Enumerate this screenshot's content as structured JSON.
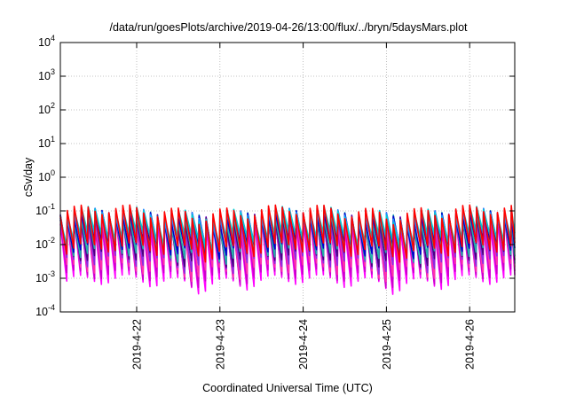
{
  "chart_data": {
    "type": "line",
    "title": "/data/run/goesPlots/archive/2019-04-26/13:00/flux/../bryn/5daysMars.plot",
    "xlabel": "Coordinated Universal Time (UTC)",
    "ylabel": "cSv/day",
    "xlim": [
      "2019-04-21T02:00",
      "2019-04-26T13:00"
    ],
    "ylim": [
      0.0001,
      10000
    ],
    "yscale": "log",
    "grid": true,
    "x_ticks": [
      "2019-4-22",
      "2019-4-23",
      "2019-4-24",
      "2019-4-25",
      "2019-4-26"
    ],
    "x_tick_dates": [
      "2019-04-22T00:00",
      "2019-04-23T00:00",
      "2019-04-24T00:00",
      "2019-04-25T00:00",
      "2019-04-26T00:00"
    ],
    "y_ticks": [
      {
        "value": 0.0001,
        "base": "10",
        "exp": "-4"
      },
      {
        "value": 0.001,
        "base": "10",
        "exp": "-3"
      },
      {
        "value": 0.01,
        "base": "10",
        "exp": "-2"
      },
      {
        "value": 0.1,
        "base": "10",
        "exp": "-1"
      },
      {
        "value": 1,
        "base": "10",
        "exp": "0"
      },
      {
        "value": 10,
        "base": "10",
        "exp": "1"
      },
      {
        "value": 100,
        "base": "10",
        "exp": "2"
      },
      {
        "value": 1000,
        "base": "10",
        "exp": "3"
      },
      {
        "value": 10000,
        "base": "10",
        "exp": "4"
      }
    ],
    "cycle_hours": 2,
    "series": [
      {
        "color": "#ff00ff",
        "peak": 0.055,
        "trough": 0.0011
      },
      {
        "color": "#cc00cc",
        "peak": 0.06,
        "trough": 0.0016
      },
      {
        "color": "#ff33aa",
        "peak": 0.07,
        "trough": 0.0025
      },
      {
        "color": "#8a2be2",
        "peak": 0.075,
        "trough": 0.004
      },
      {
        "color": "#4b0082",
        "peak": 0.08,
        "trough": 0.006
      },
      {
        "color": "#20b2aa",
        "peak": 0.09,
        "trough": 0.008
      },
      {
        "color": "#0000cd",
        "peak": 0.1,
        "trough": 0.012
      },
      {
        "color": "#1e90ff",
        "peak": 0.11,
        "trough": 0.018
      },
      {
        "color": "#00ced1",
        "peak": 0.12,
        "trough": 0.022
      },
      {
        "color": "#ff0000",
        "peak": 0.13,
        "trough": 0.01
      }
    ]
  }
}
